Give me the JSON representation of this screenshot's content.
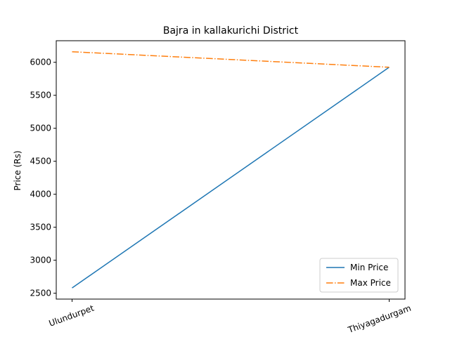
{
  "chart_data": {
    "type": "line",
    "title": "Bajra in kallakurichi District",
    "xlabel": "",
    "ylabel": "Price (Rs)",
    "categories": [
      "Ulundurpet",
      "Thiyagadurgam"
    ],
    "series": [
      {
        "name": "Min Price",
        "values": [
          2580,
          5925
        ],
        "color": "#1f77b4",
        "style": "solid"
      },
      {
        "name": "Max Price",
        "values": [
          6160,
          5925
        ],
        "color": "#ff7f0e",
        "style": "dashdot"
      }
    ],
    "ylim": [
      2411,
      6327
    ],
    "yticks": [
      2500,
      3000,
      3500,
      4000,
      4500,
      5000,
      5500,
      6000
    ],
    "grid": false,
    "legend": "lower right"
  }
}
